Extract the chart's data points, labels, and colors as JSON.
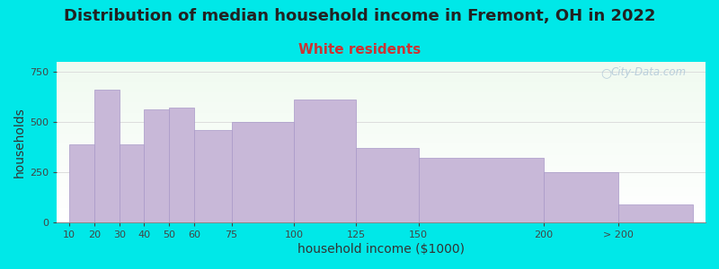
{
  "title": "Distribution of median household income in Fremont, OH in 2022",
  "subtitle": "White residents",
  "xlabel": "household income ($1000)",
  "ylabel": "households",
  "bar_labels": [
    "10",
    "20",
    "30",
    "40",
    "50",
    "60",
    "75",
    "100",
    "125",
    "150",
    "200",
    "> 200"
  ],
  "bar_values": [
    390,
    660,
    390,
    565,
    570,
    460,
    500,
    610,
    370,
    320,
    250,
    90
  ],
  "x_positions": [
    10,
    20,
    30,
    40,
    50,
    60,
    75,
    100,
    125,
    150,
    200,
    230
  ],
  "bar_widths": [
    10,
    10,
    10,
    10,
    10,
    15,
    25,
    25,
    25,
    50,
    30,
    30
  ],
  "tick_positions": [
    10,
    20,
    30,
    40,
    50,
    60,
    75,
    100,
    125,
    150,
    200,
    230
  ],
  "bar_color": "#c8b8d8",
  "bar_edge_color": "#a898c8",
  "ylim": [
    0,
    800
  ],
  "yticks": [
    0,
    250,
    500,
    750
  ],
  "xlim": [
    5,
    265
  ],
  "background_color": "#00e8e8",
  "plot_bg_color": "#f2faf2",
  "title_fontsize": 13,
  "subtitle_fontsize": 11,
  "subtitle_color": "#cc3333",
  "axis_label_fontsize": 10,
  "tick_fontsize": 8,
  "watermark_text": "City-Data.com",
  "watermark_color": "#b0c8d8"
}
